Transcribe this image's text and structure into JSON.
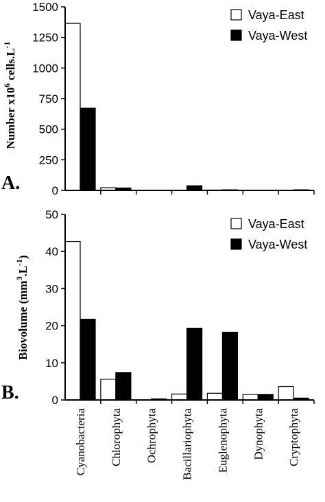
{
  "chart_data": [
    {
      "panel": "A.",
      "type": "bar",
      "ylabel_main": "Number x10",
      "ylabel_sup": "6",
      "ylabel_tail": " cells.L",
      "ylabel_sup2": "-1",
      "ylim": [
        0,
        1500
      ],
      "yticks": [
        0,
        250,
        500,
        750,
        1000,
        1250,
        1500
      ],
      "categories": [
        "Cyanobacteria",
        "Chlorophyta",
        "Ochrophyta",
        "Bacillariophyta",
        "Euglenophyta",
        "Dynophyta",
        "Cryptophyta"
      ],
      "series": [
        {
          "name": "Vaya-East",
          "color": "#ffffff",
          "values": [
            1365,
            22,
            0,
            0,
            3,
            0,
            0
          ]
        },
        {
          "name": "Vaya-West",
          "color": "#000000",
          "values": [
            672,
            20,
            0,
            38,
            5,
            0,
            5
          ]
        }
      ],
      "legend": "top-right"
    },
    {
      "panel": "B.",
      "type": "bar",
      "ylabel_main": "Biovolume (mm",
      "ylabel_sup": "3",
      "ylabel_tail": ".L",
      "ylabel_sup2": "-1",
      "ylabel_close": ")",
      "ylim": [
        0,
        50
      ],
      "yticks": [
        0,
        10,
        20,
        30,
        40,
        50
      ],
      "categories": [
        "Cyanobacteria",
        "Chlorophyta",
        "Ochrophyta",
        "Bacillariophyta",
        "Euglenophyta",
        "Dynophyta",
        "Cryptophyta"
      ],
      "series": [
        {
          "name": "Vaya-East",
          "color": "#ffffff",
          "values": [
            42.7,
            5.6,
            0,
            1.6,
            1.8,
            1.5,
            3.6
          ]
        },
        {
          "name": "Vaya-West",
          "color": "#000000",
          "values": [
            21.7,
            7.4,
            0.3,
            19.3,
            18.2,
            1.5,
            0.5
          ]
        }
      ],
      "legend": "top-right"
    }
  ]
}
